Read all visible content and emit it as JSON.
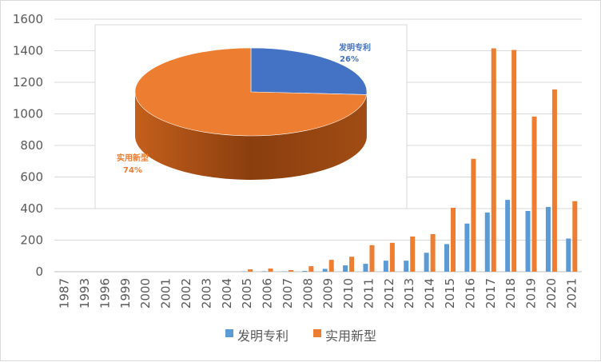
{
  "chart_data": [
    {
      "type": "bar",
      "categories": [
        "1987",
        "1993",
        "1996",
        "1999",
        "2000",
        "2001",
        "2002",
        "2003",
        "2004",
        "2005",
        "2006",
        "2007",
        "2008",
        "2009",
        "2010",
        "2011",
        "2012",
        "2013",
        "2014",
        "2015",
        "2016",
        "2017",
        "2018",
        "2019",
        "2020",
        "2021"
      ],
      "series": [
        {
          "name": "发明专利",
          "color": "#5B9BD5",
          "values": [
            0,
            0,
            0,
            0,
            0,
            0,
            0,
            0,
            0,
            2,
            3,
            2,
            5,
            18,
            40,
            50,
            70,
            70,
            120,
            175,
            305,
            375,
            455,
            385,
            410,
            210
          ]
        },
        {
          "name": "实用新型",
          "color": "#ED7D31",
          "values": [
            0,
            0,
            0,
            0,
            0,
            0,
            0,
            0,
            0,
            15,
            20,
            10,
            35,
            75,
            95,
            168,
            183,
            223,
            238,
            405,
            715,
            1415,
            1405,
            983,
            1155,
            447
          ]
        }
      ],
      "ylim": [
        0,
        1600
      ],
      "yticks": [
        "0",
        "200",
        "400",
        "600",
        "800",
        "1000",
        "1200",
        "1400",
        "1600"
      ],
      "grid": true,
      "legend": "bottom"
    },
    {
      "type": "pie",
      "style": "3d",
      "slices": [
        {
          "label": "发明专利",
          "percent_label": "26%",
          "value": 26,
          "color": "#4472C4",
          "label_color": "#4472C4"
        },
        {
          "label": "实用新型",
          "percent_label": "74%",
          "value": 74,
          "color": "#ED7D31",
          "label_color": "#ED7D31"
        }
      ]
    }
  ]
}
